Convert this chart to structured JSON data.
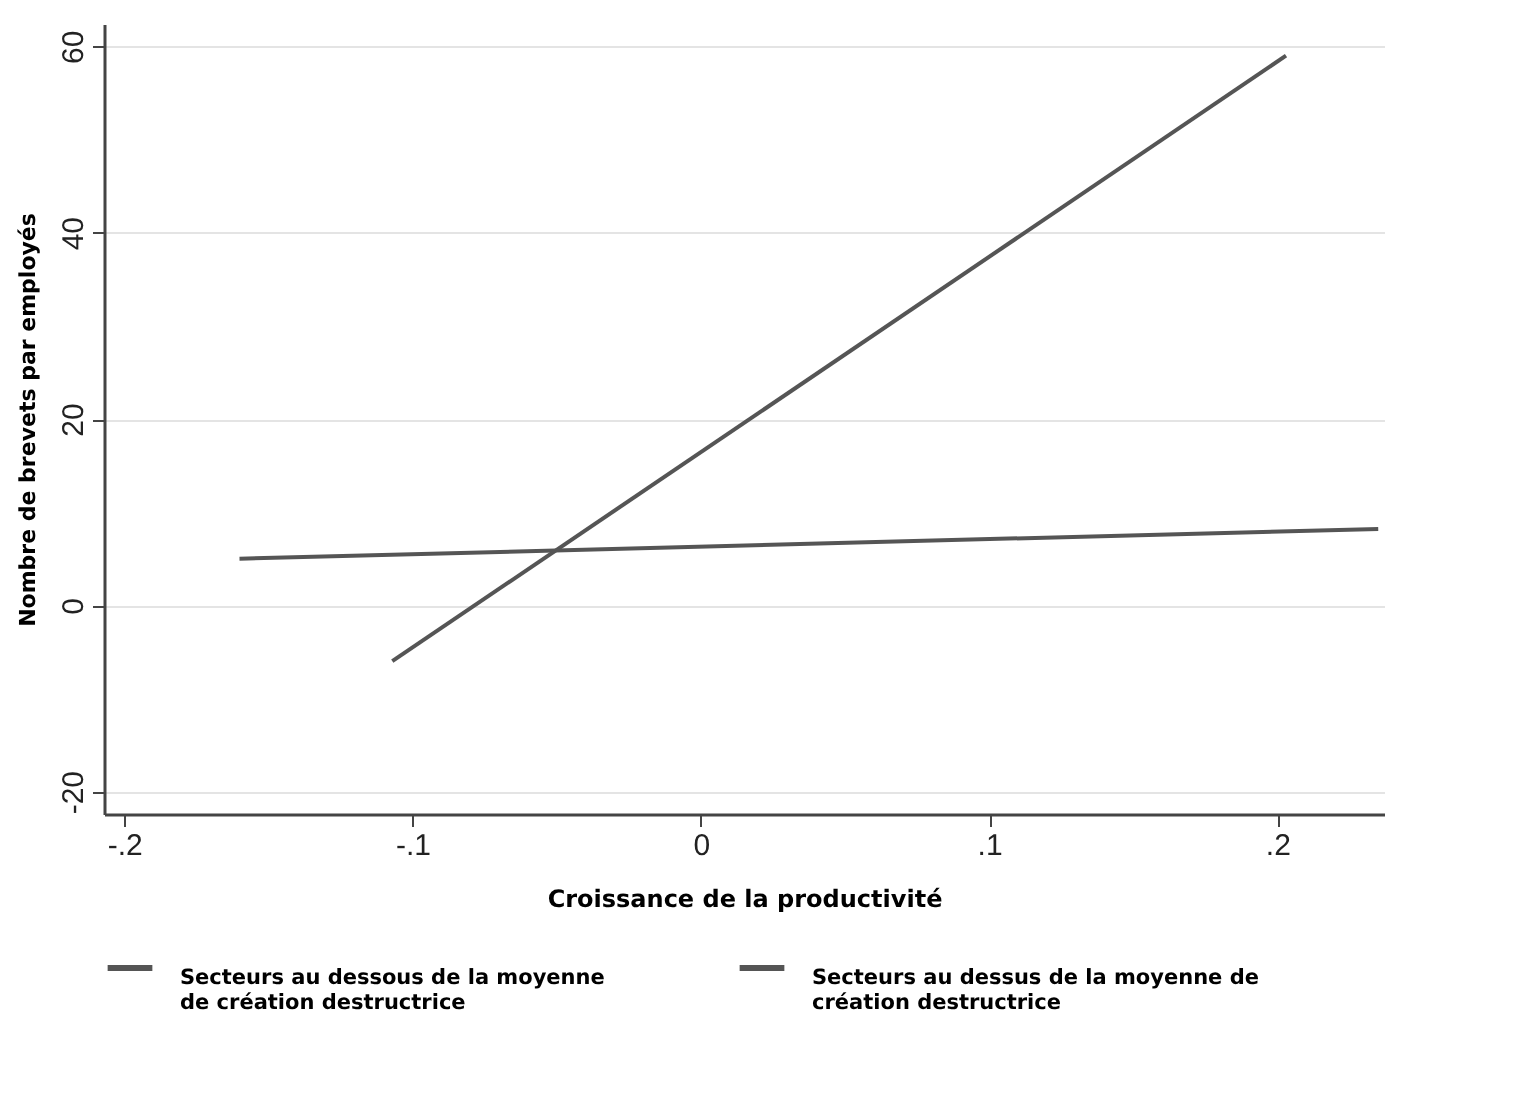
{
  "chart_data": {
    "type": "line",
    "xlabel": "Croissance de la productivité",
    "ylabel": "Nombre de brevets par employés",
    "xlim": [
      -0.207,
      0.237
    ],
    "ylim": [
      -22.4,
      62.4
    ],
    "xticks": [
      {
        "value": -0.2,
        "label": "-.2"
      },
      {
        "value": -0.1,
        "label": "-.1"
      },
      0,
      {
        "value": 0.1,
        "label": ".1"
      },
      {
        "value": 0.2,
        "label": ".2"
      }
    ],
    "yticks": [
      -20,
      0,
      20,
      40,
      60
    ],
    "grid": "y",
    "legend": "bottom",
    "series": [
      {
        "name": "Secteurs au dessous de la moyenne de création destructrice",
        "color": "#555555",
        "x": [
          -0.107,
          0.203
        ],
        "values": [
          -6,
          59
        ]
      },
      {
        "name": "Secteurs au dessus de la moyenne de création destructrice",
        "color": "#555555",
        "x": [
          -0.16,
          0.235
        ],
        "values": [
          5,
          8.2
        ]
      }
    ]
  }
}
